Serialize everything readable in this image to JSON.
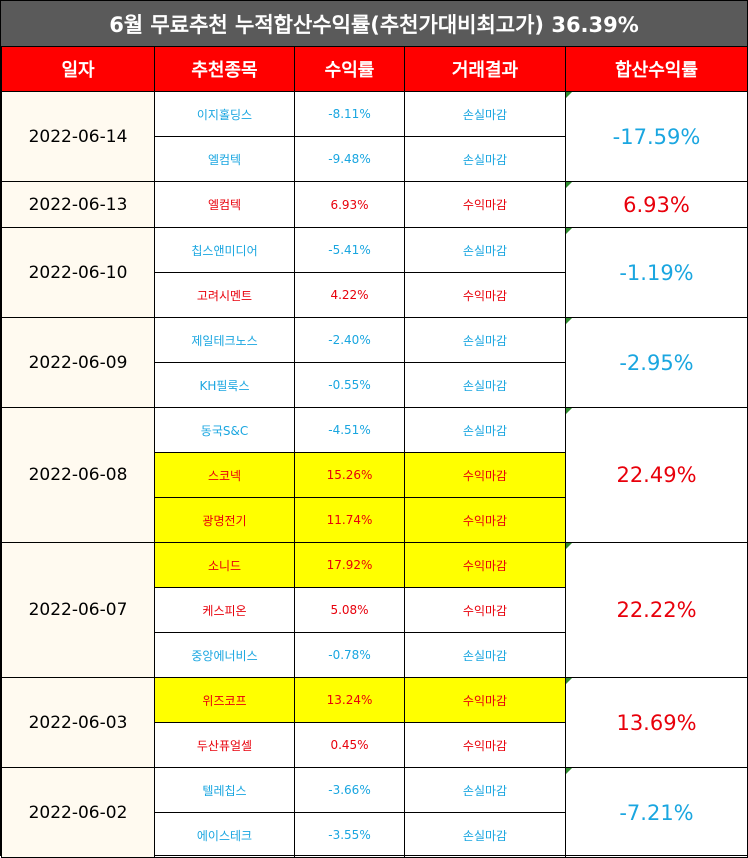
{
  "title": "6월 무료추천 누적합산수익률(추천가대비최고가) 36.39%",
  "headers": {
    "date": "일자",
    "stock": "추천종목",
    "return": "수익률",
    "result": "거래결과",
    "total": "합산수익률"
  },
  "colors": {
    "header_bg": "#ff0000",
    "title_bg": "#5a5a5a",
    "gain": "#e8000b",
    "loss": "#1aa6e0",
    "highlight": "#ffff00"
  },
  "groups": [
    {
      "date": "2022-06-14",
      "total": "-17.59%",
      "rows": [
        {
          "stock": "이지홀딩스",
          "return": "-8.11%",
          "result": "손실마감"
        },
        {
          "stock": "엘컴텍",
          "return": "-9.48%",
          "result": "손실마감"
        }
      ]
    },
    {
      "date": "2022-06-13",
      "total": "6.93%",
      "rows": [
        {
          "stock": "엘컴텍",
          "return": "6.93%",
          "result": "수익마감"
        }
      ]
    },
    {
      "date": "2022-06-10",
      "total": "-1.19%",
      "rows": [
        {
          "stock": "칩스앤미디어",
          "return": "-5.41%",
          "result": "손실마감"
        },
        {
          "stock": "고려시멘트",
          "return": "4.22%",
          "result": "수익마감"
        }
      ]
    },
    {
      "date": "2022-06-09",
      "total": "-2.95%",
      "rows": [
        {
          "stock": "제일테크노스",
          "return": "-2.40%",
          "result": "손실마감"
        },
        {
          "stock": "KH필룩스",
          "return": "-0.55%",
          "result": "손실마감"
        }
      ]
    },
    {
      "date": "2022-06-08",
      "total": "22.49%",
      "rows": [
        {
          "stock": "동국S&C",
          "return": "-4.51%",
          "result": "손실마감"
        },
        {
          "stock": "스코넥",
          "return": "15.26%",
          "result": "수익마감"
        },
        {
          "stock": "광명전기",
          "return": "11.74%",
          "result": "수익마감"
        }
      ]
    },
    {
      "date": "2022-06-07",
      "total": "22.22%",
      "rows": [
        {
          "stock": "소니드",
          "return": "17.92%",
          "result": "수익마감"
        },
        {
          "stock": "케스피온",
          "return": "5.08%",
          "result": "수익마감"
        },
        {
          "stock": "중앙에너비스",
          "return": "-0.78%",
          "result": "손실마감"
        }
      ]
    },
    {
      "date": "2022-06-03",
      "total": "13.69%",
      "rows": [
        {
          "stock": "위즈코프",
          "return": "13.24%",
          "result": "수익마감"
        },
        {
          "stock": "두산퓨얼셀",
          "return": "0.45%",
          "result": "수익마감"
        }
      ]
    },
    {
      "date": "2022-06-02",
      "total": "-7.21%",
      "rows": [
        {
          "stock": "텔레칩스",
          "return": "-3.66%",
          "result": "손실마감"
        },
        {
          "stock": "에이스테크",
          "return": "-3.55%",
          "result": "손실마감"
        }
      ]
    }
  ]
}
